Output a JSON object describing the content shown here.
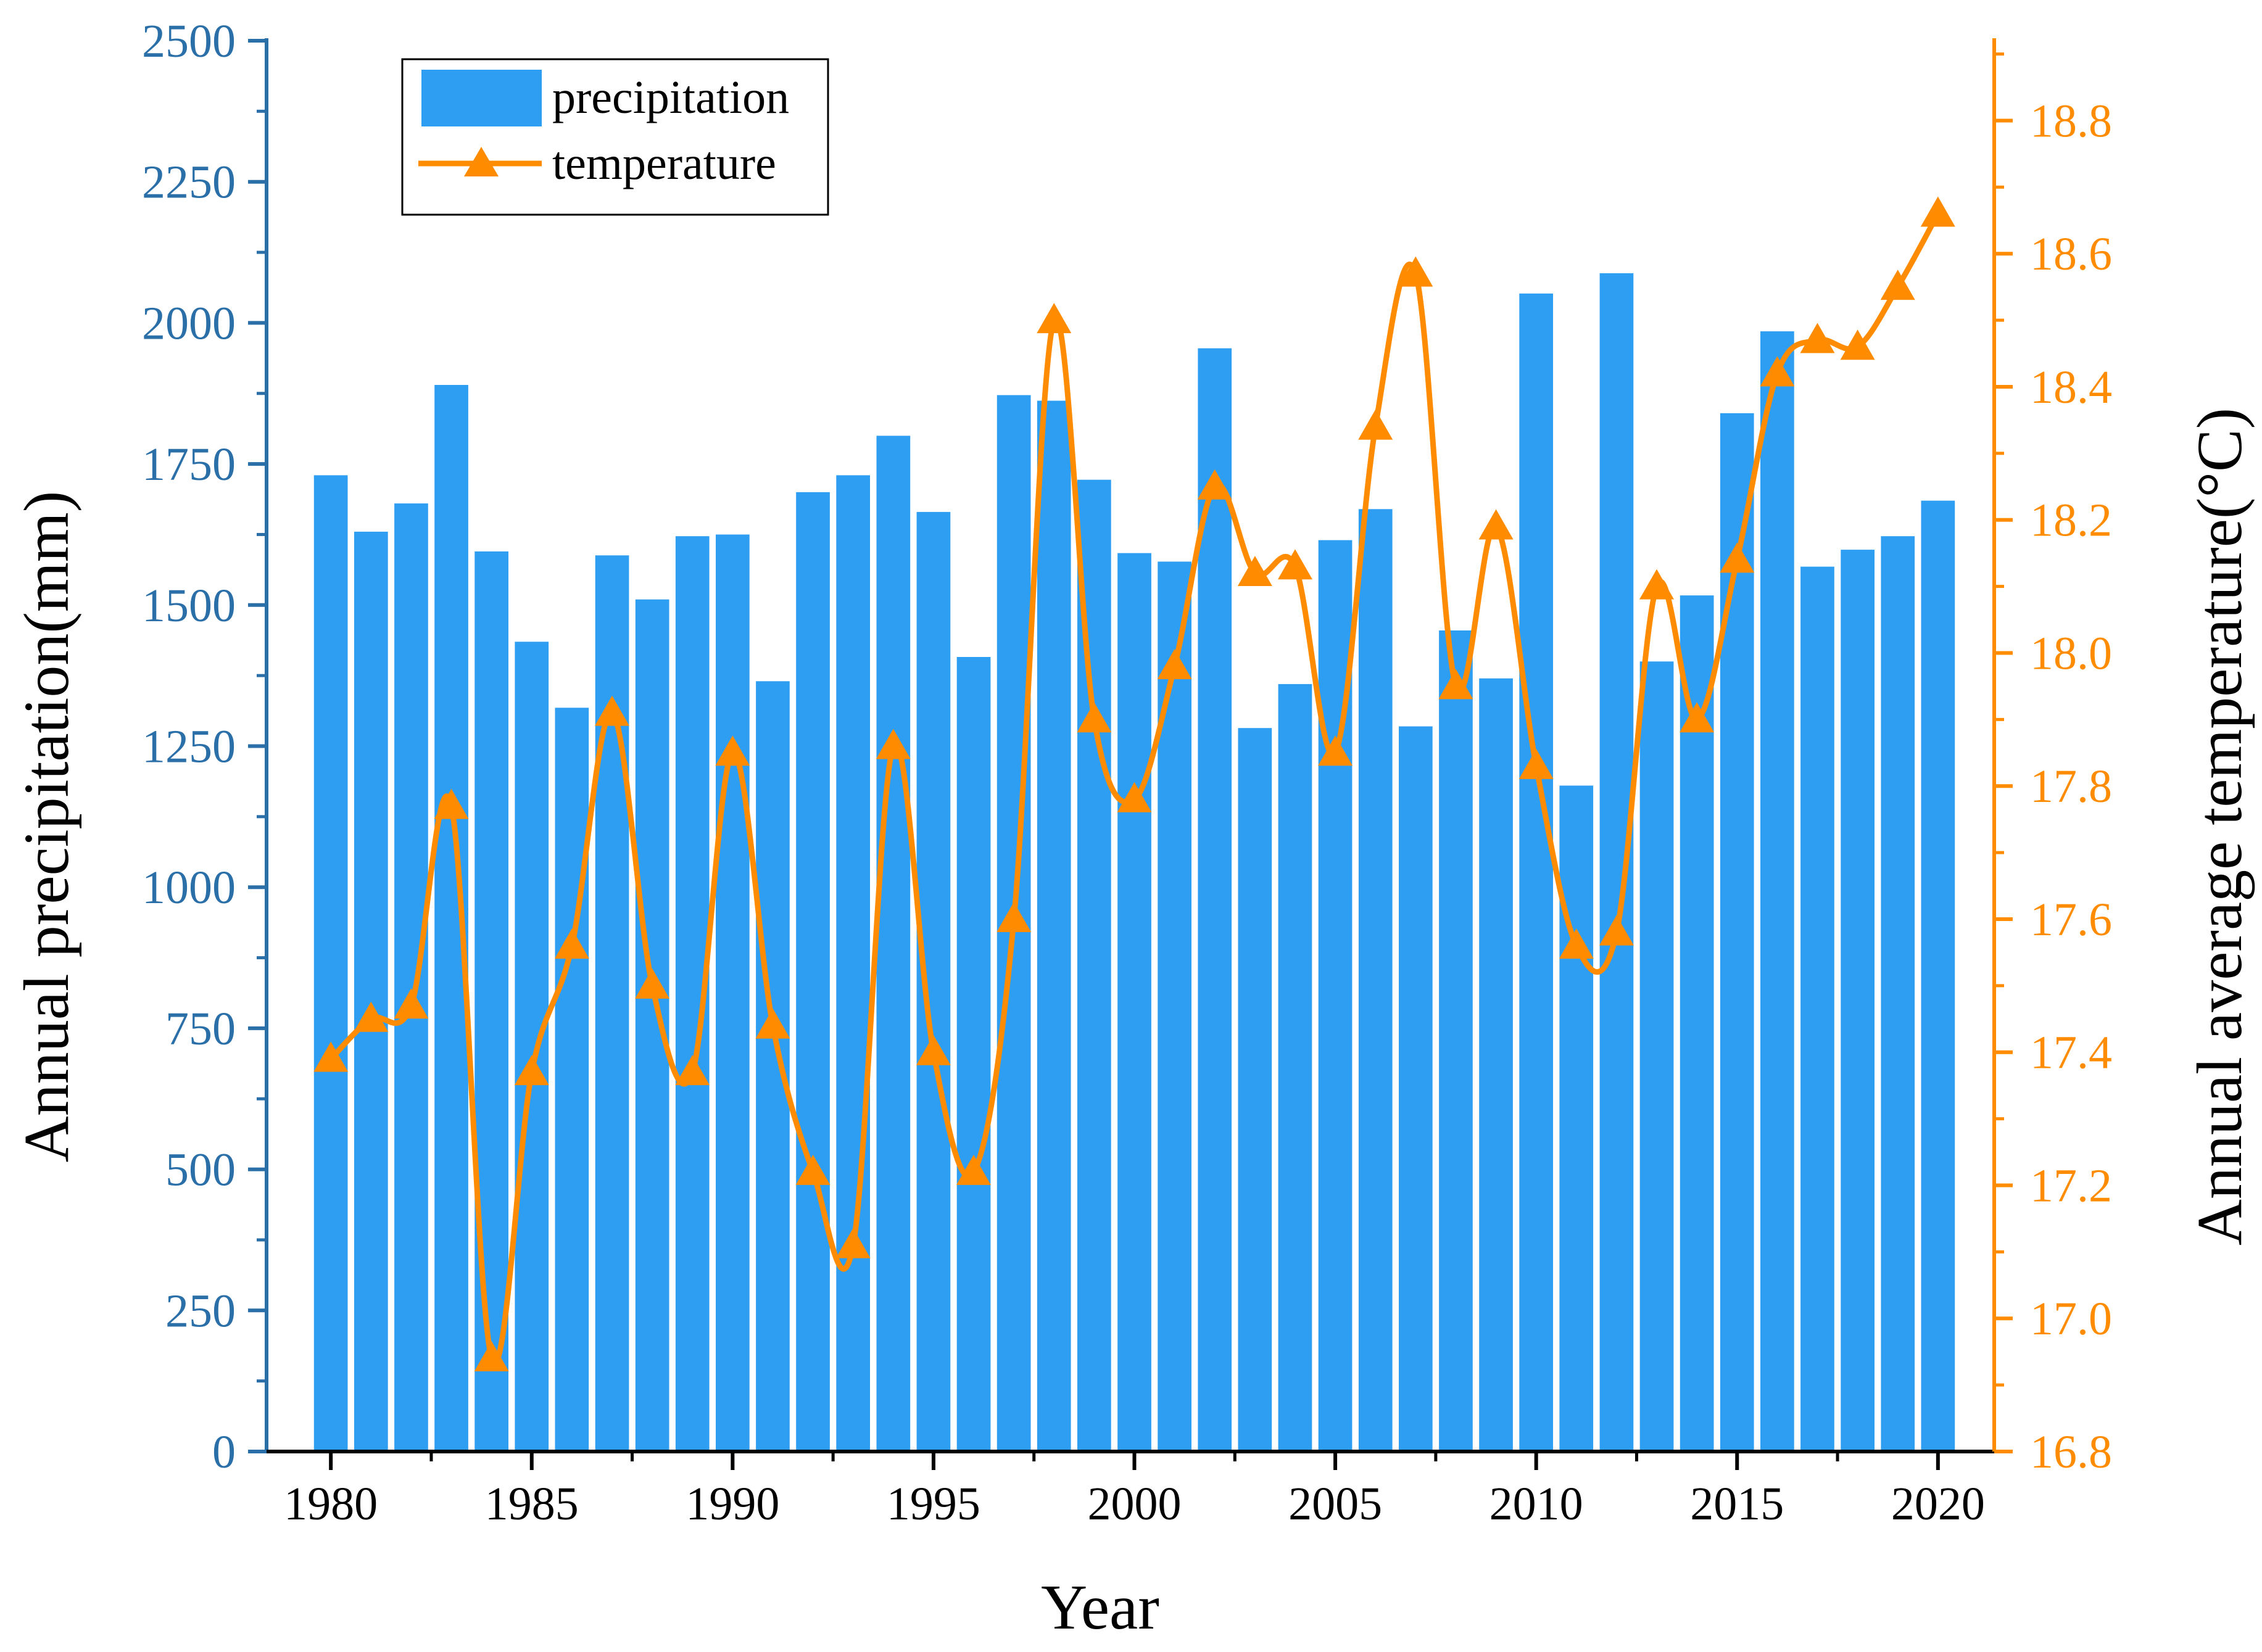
{
  "chart_data": {
    "type": "bar",
    "xlabel": "Year",
    "ylabel_left": "Annual precipitation(mm)",
    "ylabel_right": "Annual average temperature(°C)",
    "x_ticks": [
      1980,
      1985,
      1990,
      1995,
      2000,
      2005,
      2010,
      2015,
      2020
    ],
    "y_left_ticks": [
      0,
      250,
      500,
      750,
      1000,
      1250,
      1500,
      1750,
      2000,
      2250,
      2500
    ],
    "y_right_ticks": [
      "16.8",
      "17.0",
      "17.2",
      "17.4",
      "17.6",
      "17.8",
      "18.0",
      "18.2",
      "18.4",
      "18.6",
      "18.8"
    ],
    "xlim": [
      1978.4,
      2021.4
    ],
    "ylim_left": [
      0,
      2500
    ],
    "ylim_right": [
      16.8,
      18.92
    ],
    "grid": false,
    "legend_position": "top-left",
    "colors": {
      "precipitation": "#2E9EF2",
      "temperature": "#FF8C00",
      "left_axis": "#2B6FA8",
      "right_axis": "#FF8C00"
    },
    "x": [
      1980,
      1981,
      1982,
      1983,
      1984,
      1985,
      1986,
      1987,
      1988,
      1989,
      1990,
      1991,
      1992,
      1993,
      1994,
      1995,
      1996,
      1997,
      1998,
      1999,
      2000,
      2001,
      2002,
      2003,
      2004,
      2005,
      2006,
      2007,
      2008,
      2009,
      2010,
      2011,
      2012,
      2013,
      2014,
      2015,
      2016,
      2017,
      2018,
      2019,
      2020
    ],
    "series": [
      {
        "name": "precipitation",
        "type": "bar",
        "axis": "left",
        "values": [
          1730,
          1630,
          1680,
          1890,
          1595,
          1435,
          1318,
          1588,
          1510,
          1622,
          1625,
          1365,
          1700,
          1730,
          1800,
          1665,
          1408,
          1872,
          1862,
          1722,
          1592,
          1577,
          1955,
          1282,
          1360,
          1615,
          1670,
          1285,
          1455,
          1370,
          2052,
          1180,
          2088,
          1400,
          1517,
          1840,
          1985,
          1568,
          1598,
          1622,
          1685
        ]
      },
      {
        "name": "temperature",
        "type": "line",
        "axis": "right",
        "marker": "triangle",
        "values": [
          17.39,
          17.45,
          17.47,
          17.77,
          16.94,
          17.37,
          17.56,
          17.91,
          17.5,
          17.37,
          17.85,
          17.44,
          17.22,
          17.11,
          17.86,
          17.4,
          17.22,
          17.6,
          18.5,
          17.9,
          17.78,
          17.98,
          18.25,
          18.12,
          18.13,
          17.85,
          18.34,
          18.57,
          17.95,
          18.19,
          17.83,
          17.56,
          17.58,
          18.1,
          17.9,
          18.14,
          18.42,
          18.47,
          18.46,
          18.55,
          18.66
        ]
      }
    ]
  }
}
